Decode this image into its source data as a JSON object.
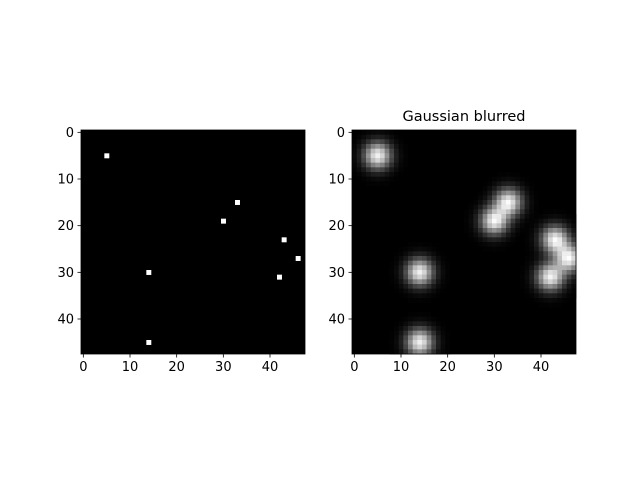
{
  "figure": {
    "background": "#ffffff"
  },
  "chart_data": [
    {
      "type": "heatmap",
      "title": "",
      "xlabel": "",
      "ylabel": "",
      "shape": [
        48,
        48
      ],
      "xlim": [
        -0.5,
        47.5
      ],
      "ylim": [
        47.5,
        -0.5
      ],
      "xticks": [
        0,
        10,
        20,
        30,
        40
      ],
      "yticks": [
        0,
        10,
        20,
        30,
        40
      ],
      "colormap": "gray",
      "background_value": 0,
      "pixels": [
        {
          "x": 5,
          "y": 5,
          "value": 1
        },
        {
          "x": 33,
          "y": 15,
          "value": 1
        },
        {
          "x": 30,
          "y": 19,
          "value": 1
        },
        {
          "x": 43,
          "y": 23,
          "value": 1
        },
        {
          "x": 46,
          "y": 27,
          "value": 1
        },
        {
          "x": 14,
          "y": 30,
          "value": 1
        },
        {
          "x": 42,
          "y": 31,
          "value": 1
        },
        {
          "x": 14,
          "y": 45,
          "value": 1
        }
      ]
    },
    {
      "type": "heatmap",
      "title": "Gaussian blurred",
      "xlabel": "",
      "ylabel": "",
      "shape": [
        48,
        48
      ],
      "xlim": [
        -0.5,
        47.5
      ],
      "ylim": [
        47.5,
        -0.5
      ],
      "xticks": [
        0,
        10,
        20,
        30,
        40
      ],
      "yticks": [
        0,
        10,
        20,
        30,
        40
      ],
      "colormap": "gray",
      "blur_sigma": 2,
      "source": "gaussian blur of the points shown in the first panel"
    }
  ]
}
